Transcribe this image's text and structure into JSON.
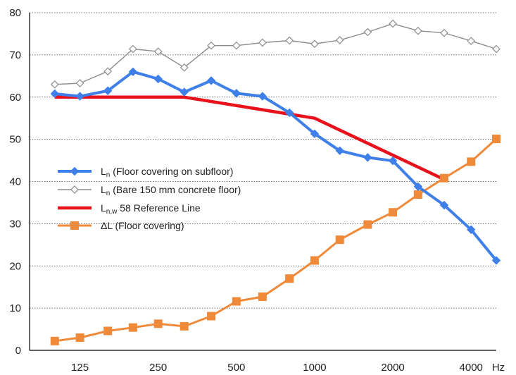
{
  "chart_data": {
    "type": "line",
    "xlabel": "",
    "ylabel": "",
    "x_unit_label": "Hz",
    "x_scale": "log",
    "xlim": [
      80,
      5000
    ],
    "ylim": [
      0,
      80
    ],
    "y_ticks": [
      0,
      10,
      20,
      30,
      40,
      50,
      60,
      70,
      80
    ],
    "x_ticks": [
      {
        "value": 125,
        "label": "125"
      },
      {
        "value": 250,
        "label": "250"
      },
      {
        "value": 500,
        "label": "500"
      },
      {
        "value": 1000,
        "label": "1000"
      },
      {
        "value": 2000,
        "label": "2000"
      },
      {
        "value": 4000,
        "label": "4000"
      }
    ],
    "grid": "horizontal dotted",
    "legend_position": "center-left",
    "series": [
      {
        "key": "ln_floor",
        "legend_main": "L",
        "legend_sub": "n",
        "legend_rest": "  (Floor covering on subfloor)",
        "color": "#3f7fe8",
        "marker": "diamond-filled",
        "x": [
          100,
          125,
          160,
          200,
          250,
          315,
          400,
          500,
          630,
          800,
          1000,
          1250,
          1600,
          2000,
          2500,
          3150,
          4000,
          5000
        ],
        "y": [
          60.8,
          60.2,
          61.5,
          66.0,
          64.3,
          61.2,
          63.9,
          60.9,
          60.2,
          56.3,
          51.3,
          47.3,
          45.7,
          44.9,
          38.8,
          34.4,
          28.6,
          21.3
        ]
      },
      {
        "key": "ln_bare",
        "legend_main": "L",
        "legend_sub": "n",
        "legend_rest": "  (Bare 150 mm concrete floor)",
        "color": "#8c8c8c",
        "marker": "diamond-open",
        "x": [
          100,
          125,
          160,
          200,
          250,
          315,
          400,
          500,
          630,
          800,
          1000,
          1250,
          1600,
          2000,
          2500,
          3150,
          4000,
          5000
        ],
        "y": [
          63.0,
          63.3,
          66.1,
          71.4,
          70.8,
          67.0,
          72.2,
          72.2,
          72.9,
          73.4,
          72.6,
          73.5,
          75.4,
          77.4,
          75.7,
          75.2,
          73.3,
          71.4
        ]
      },
      {
        "key": "lnw_ref",
        "legend_main": "L",
        "legend_sub": "n,w",
        "legend_rest": "  58 Reference Line",
        "color": "#e8121c",
        "marker": "none",
        "x": [
          100,
          315,
          1000,
          3150
        ],
        "y": [
          60,
          60,
          55,
          40.5
        ]
      },
      {
        "key": "delta_l",
        "legend_main": "ΔL",
        "legend_sub": "",
        "legend_rest": "  (Floor covering)",
        "color": "#ef8a3a",
        "marker": "square",
        "x": [
          100,
          125,
          160,
          200,
          250,
          315,
          400,
          500,
          630,
          800,
          1000,
          1250,
          1600,
          2000,
          2500,
          3150,
          4000,
          5000
        ],
        "y": [
          2.2,
          3.0,
          4.6,
          5.4,
          6.3,
          5.7,
          8.1,
          11.6,
          12.7,
          17.0,
          21.3,
          26.2,
          29.8,
          32.7,
          36.9,
          40.8,
          44.7,
          50.1
        ]
      }
    ]
  }
}
